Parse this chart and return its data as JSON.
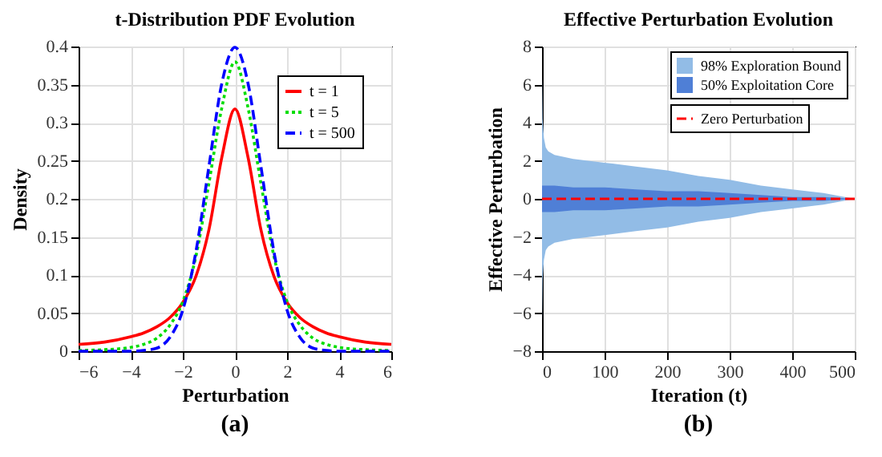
{
  "chart_data": [
    {
      "type": "line",
      "title": "t-Distribution PDF Evolution",
      "xlabel": "Perturbation",
      "ylabel": "Density",
      "annotations": [
        "(a)"
      ],
      "x": [
        -6,
        -5,
        -4,
        -3.5,
        -3,
        -2.5,
        -2,
        -1.5,
        -1,
        -0.5,
        0,
        0.5,
        1,
        1.5,
        2,
        2.5,
        3,
        3.5,
        4,
        5,
        6
      ],
      "series": [
        {
          "name": "t = 1",
          "color": "#ff0000",
          "line_style": "solid",
          "values": [
            0.009,
            0.012,
            0.019,
            0.024,
            0.032,
            0.044,
            0.064,
            0.098,
            0.159,
            0.255,
            0.318,
            0.255,
            0.159,
            0.098,
            0.064,
            0.044,
            0.032,
            0.024,
            0.019,
            0.012,
            0.009
          ]
        },
        {
          "name": "t = 5",
          "color": "#00dd00",
          "line_style": "dotted",
          "values": [
            0.001,
            0.002,
            0.005,
            0.009,
            0.017,
            0.034,
            0.065,
            0.124,
            0.22,
            0.32,
            0.38,
            0.32,
            0.22,
            0.124,
            0.065,
            0.034,
            0.017,
            0.009,
            0.005,
            0.002,
            0.001
          ]
        },
        {
          "name": "t = 500",
          "color": "#0000ff",
          "line_style": "dashed",
          "values": [
            0,
            0,
            0,
            0.001,
            0.004,
            0.018,
            0.054,
            0.13,
            0.242,
            0.352,
            0.399,
            0.352,
            0.242,
            0.13,
            0.054,
            0.018,
            0.004,
            0.001,
            0,
            0,
            0
          ]
        }
      ],
      "xlim": [
        -6,
        6
      ],
      "xticks": [
        -6,
        -4,
        -2,
        0,
        2,
        4,
        6
      ],
      "ylim": [
        0,
        0.4
      ],
      "yticks": [
        0,
        0.05,
        0.1,
        0.15,
        0.2,
        0.25,
        0.3,
        0.35,
        0.4
      ],
      "grid": true,
      "legend": "top right"
    },
    {
      "type": "line",
      "title": "Effective Perturbation Evolution",
      "xlabel": "Iteration (t)",
      "ylabel": "Effective Perturbation",
      "annotations": [
        "(b)"
      ],
      "x": [
        0,
        1,
        3,
        6,
        10,
        20,
        50,
        100,
        150,
        200,
        250,
        300,
        350,
        400,
        450,
        500
      ],
      "series": [
        {
          "name": "98% Exploration Bound",
          "color": "#92bce6",
          "values": [
            null,
            null,
            null,
            null,
            null,
            null,
            null,
            null,
            null,
            null,
            null,
            null,
            null,
            null,
            null,
            null
          ],
          "upper": [
            6.5,
            4.2,
            3.2,
            2.7,
            2.5,
            2.3,
            2.1,
            1.9,
            1.7,
            1.5,
            1.2,
            1.0,
            0.7,
            0.5,
            0.3,
            0
          ],
          "lower": [
            -6.5,
            -4.2,
            -3.2,
            -2.7,
            -2.5,
            -2.3,
            -2.1,
            -1.9,
            -1.7,
            -1.5,
            -1.2,
            -1.0,
            -0.7,
            -0.5,
            -0.3,
            0
          ]
        },
        {
          "name": "50% Exploitation Core",
          "color": "#4f7fd6",
          "values": [
            null,
            null,
            null,
            null,
            null,
            null,
            null,
            null,
            null,
            null,
            null,
            null,
            null,
            null,
            null,
            null
          ],
          "upper": [
            0.7,
            0.7,
            0.7,
            0.7,
            0.7,
            0.7,
            0.6,
            0.6,
            0.5,
            0.4,
            0.4,
            0.3,
            0.2,
            0.1,
            0.1,
            0
          ],
          "lower": [
            -0.7,
            -0.7,
            -0.7,
            -0.7,
            -0.7,
            -0.7,
            -0.6,
            -0.6,
            -0.5,
            -0.4,
            -0.4,
            -0.3,
            -0.2,
            -0.1,
            -0.1,
            0
          ]
        }
      ],
      "ref_lines": [
        {
          "axis": "y",
          "value": 0,
          "label": "Zero Perturbation",
          "color": "#ff0000",
          "line_style": "dashed"
        }
      ],
      "xlim": [
        0,
        500
      ],
      "xticks": [
        0,
        100,
        200,
        300,
        400,
        500
      ],
      "ylim": [
        -8,
        8
      ],
      "yticks": [
        -8,
        -6,
        -4,
        -2,
        0,
        2,
        4,
        6,
        8
      ],
      "grid": true,
      "legend": "top right"
    }
  ]
}
